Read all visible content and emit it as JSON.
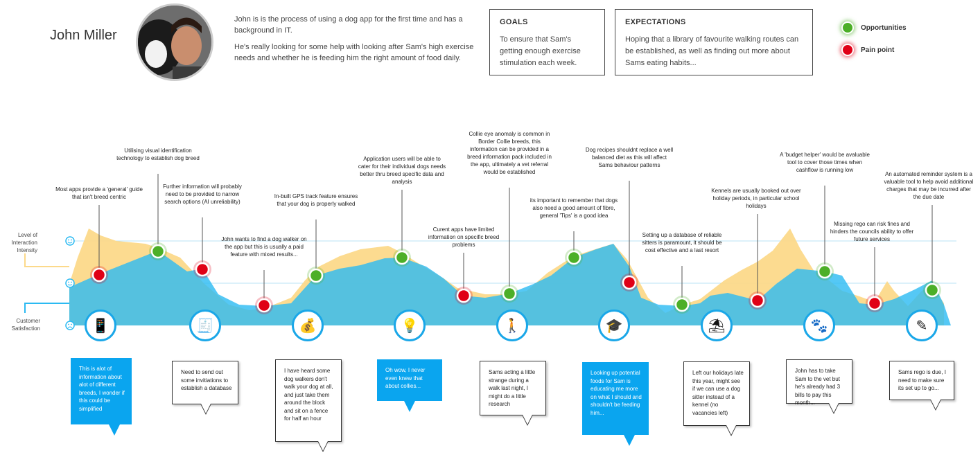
{
  "persona": {
    "name": "John Miller",
    "bio": [
      "John is is the process of using a dog app for the first time and has a background in IT.",
      "He's really looking for some help with looking after Sam's high exercise needs and whether he is feeding him the right amount of food daily."
    ]
  },
  "goals": {
    "title": "GOALS",
    "text": "To ensure that Sam's getting enough exercise stimulation each week."
  },
  "expectations": {
    "title": "EXPECTATIONS",
    "text": "Hoping that a library of favourite walking routes can be established, as well as finding out more about Sams eating habits..."
  },
  "legend": {
    "opportunities": "Opportunities",
    "pain_point": "Pain point"
  },
  "axis": {
    "interaction": "Level of Interaction Intensity",
    "satisfaction": "Customer Satisfaction"
  },
  "colors": {
    "interaction_area": "#fcd98a",
    "satisfaction_area": "#2bbaf2",
    "overlap_area": "#3aa6b6",
    "opportunity": "#4caf28",
    "pain": "#e00016",
    "accent": "#1aa7e8"
  },
  "annotations": [
    {
      "id": "a1",
      "type": "pain",
      "text": "Most apps provide a 'general' guide that isn't breed centric"
    },
    {
      "id": "a2",
      "type": "opportunity",
      "text": "Utilising visual identification technology to establish dog breed"
    },
    {
      "id": "a3",
      "type": "pain",
      "text": "Further information will probably need to be provided to narrow search options (AI unreliability)"
    },
    {
      "id": "a4",
      "type": "pain",
      "text": "John wants to find a dog walker on the app but this is usually a paid feature with mixed results..."
    },
    {
      "id": "a5",
      "type": "opportunity",
      "text": "In-built GPS track feature ensures that your dog is properly walked"
    },
    {
      "id": "a6",
      "type": "opportunity",
      "text": "Application users will be able to cater for their individual dogs needs better thru breed specific data and analysis"
    },
    {
      "id": "a7",
      "type": "pain",
      "text": "Curent apps have limited information on specific breed problems"
    },
    {
      "id": "a8",
      "type": "opportunity",
      "text": "Collie eye anomaly is common in Border Collie breeds, this information can be provided in a breed information pack included in the app, ultimately a vet referral would be established"
    },
    {
      "id": "a9",
      "type": "opportunity",
      "text": "its important to remember that dogs also need a good amount of fibre, general 'Tips' is a good idea"
    },
    {
      "id": "a10",
      "type": "pain",
      "text": "Dog recipes shouldnt replace a well balanced diet as this will affect Sams behaviour patterns"
    },
    {
      "id": "a11",
      "type": "opportunity",
      "text": "Setting up a database of reliable sitters is paramount, it should be cost effective and a last resort"
    },
    {
      "id": "a12",
      "type": "pain",
      "text": "Kennels are usually booked out over holiday periods, in particular school holidays"
    },
    {
      "id": "a13",
      "type": "opportunity",
      "text": "A 'budget helper' would be avaluable tool to cover those times when cashflow is running low"
    },
    {
      "id": "a14",
      "type": "pain",
      "text": "Missing rego can risk fines and hinders the councils ability to offer future services"
    },
    {
      "id": "a15",
      "type": "opportunity",
      "text": "An automated reminder system is a valuable tool to help avoid additional charges that may be incurred after the due date"
    }
  ],
  "touchpoints": [
    {
      "icon": "phone-hand-icon",
      "glyph": "📱",
      "style": "blue",
      "quote": "This is alot of information about alot of different breeds, I wonder if this could be simplified"
    },
    {
      "icon": "invoice-icon",
      "glyph": "🧾",
      "style": "white",
      "quote": "Need to send out some invitiations to establish a database"
    },
    {
      "icon": "money-bag-icon",
      "glyph": "💰",
      "style": "white",
      "quote": "I have heard some dog walkers don't walk your dog at all, and just take them around the block and sit on a fence for half an hour"
    },
    {
      "icon": "lightbulb-icon",
      "glyph": "💡",
      "style": "blue",
      "quote": "Oh wow, I never even knew that about collies..."
    },
    {
      "icon": "dog-walker-icon",
      "glyph": "🚶",
      "style": "white",
      "quote": "Sams acting a little strange during a walk last night, I might do a little research"
    },
    {
      "icon": "graduation-cap-icon",
      "glyph": "🎓",
      "style": "blue",
      "quote": "Looking up potential foods for Sam is educating me more on what I should and shouldn't be feeding him..."
    },
    {
      "icon": "beach-umbrella-icon",
      "glyph": "⛱",
      "style": "white",
      "quote": "Left our holidays late this year, might see if we can use a dog sitter instead of a  kennel (no vacancies left)"
    },
    {
      "icon": "paw-medical-icon",
      "glyph": "🐾",
      "style": "white",
      "quote": "John has to take Sam to the vet but he's already had 3 bills to pay this month..."
    },
    {
      "icon": "edit-icon",
      "glyph": "✎",
      "style": "white",
      "quote": "Sams rego is due, I need to make sure its set up to go..."
    }
  ]
}
